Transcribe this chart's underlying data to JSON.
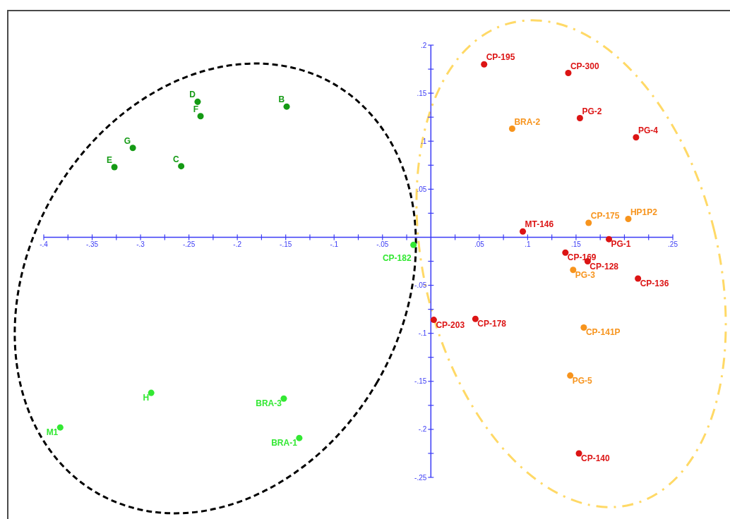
{
  "chart_data": {
    "type": "scatter",
    "marker": "circle",
    "series": [
      {
        "color": "#149a14",
        "x": [
          -0.241,
          -0.238,
          -0.149,
          -0.308,
          -0.327,
          -0.258
        ],
        "values": [
          0.141,
          0.126,
          0.136,
          0.093,
          0.073,
          0.074
        ]
      },
      {
        "color": "#33e833",
        "x": [
          -0.289,
          -0.152,
          -0.383,
          -0.136,
          -0.018
        ],
        "values": [
          -0.162,
          -0.168,
          -0.198,
          -0.209,
          -0.008
        ]
      },
      {
        "color": "#dc1414",
        "x": [
          0.055,
          0.142,
          0.154,
          0.212,
          0.095,
          0.184,
          0.139,
          0.162,
          0.214,
          0.003,
          0.046,
          0.153
        ],
        "values": [
          0.18,
          0.171,
          0.124,
          0.104,
          0.006,
          -0.002,
          -0.016,
          -0.025,
          -0.043,
          -0.086,
          -0.085,
          -0.225
        ]
      },
      {
        "color": "#f7941d",
        "x": [
          0.084,
          0.163,
          0.204,
          0.147,
          0.158,
          0.144
        ],
        "values": [
          0.113,
          0.015,
          0.019,
          -0.034,
          -0.094,
          -0.144
        ]
      }
    ],
    "xlim": [
      -0.4,
      0.25
    ],
    "ylim": [
      -0.25,
      0.2
    ],
    "xticks": [
      {
        "value": -0.4,
        "label": "-.4"
      },
      {
        "value": -0.375,
        "label": null
      },
      {
        "value": -0.35,
        "label": "-.35"
      },
      {
        "value": -0.325,
        "label": null
      },
      {
        "value": -0.3,
        "label": "-.3"
      },
      {
        "value": -0.275,
        "label": null
      },
      {
        "value": -0.25,
        "label": "-.25"
      },
      {
        "value": -0.225,
        "label": null
      },
      {
        "value": -0.2,
        "label": "-.2"
      },
      {
        "value": -0.175,
        "label": null
      },
      {
        "value": -0.15,
        "label": "-.15"
      },
      {
        "value": -0.125,
        "label": null
      },
      {
        "value": -0.1,
        "label": "-.1"
      },
      {
        "value": -0.075,
        "label": null
      },
      {
        "value": -0.05,
        "label": "-.05"
      },
      {
        "value": -0.025,
        "label": null
      },
      {
        "value": 0.025,
        "label": null
      },
      {
        "value": 0.05,
        "label": ".05"
      },
      {
        "value": 0.075,
        "label": null
      },
      {
        "value": 0.1,
        "label": ".1"
      },
      {
        "value": 0.125,
        "label": null
      },
      {
        "value": 0.15,
        "label": ".15"
      },
      {
        "value": 0.175,
        "label": null
      },
      {
        "value": 0.2,
        "label": null
      },
      {
        "value": 0.225,
        "label": null
      },
      {
        "value": 0.25,
        "label": ".25"
      }
    ],
    "yticks": [
      {
        "value": 0.2,
        "label": ".2"
      },
      {
        "value": 0.175,
        "label": null
      },
      {
        "value": 0.15,
        "label": ".15"
      },
      {
        "value": 0.125,
        "label": null
      },
      {
        "value": 0.1,
        "label": ".1"
      },
      {
        "value": 0.075,
        "label": null
      },
      {
        "value": 0.05,
        "label": ".05"
      },
      {
        "value": 0.025,
        "label": null
      },
      {
        "value": -0.025,
        "label": null
      },
      {
        "value": -0.05,
        "label": "-.05"
      },
      {
        "value": -0.075,
        "label": null
      },
      {
        "value": -0.1,
        "label": "-.1"
      },
      {
        "value": -0.125,
        "label": null
      },
      {
        "value": -0.15,
        "label": "-.15"
      },
      {
        "value": -0.175,
        "label": null
      },
      {
        "value": -0.2,
        "label": "-.2"
      },
      {
        "value": -0.225,
        "label": null
      },
      {
        "value": -0.25,
        "label": "-.25"
      }
    ],
    "annotations": [
      {
        "text": "D",
        "x": -0.241,
        "y": 0.141
      },
      {
        "text": "F",
        "x": -0.238,
        "y": 0.126
      },
      {
        "text": "B",
        "x": -0.149,
        "y": 0.136
      },
      {
        "text": "G",
        "x": -0.308,
        "y": 0.093
      },
      {
        "text": "E",
        "x": -0.327,
        "y": 0.073
      },
      {
        "text": "C",
        "x": -0.258,
        "y": 0.074
      },
      {
        "text": "H",
        "x": -0.289,
        "y": -0.162
      },
      {
        "text": "BRA-3",
        "x": -0.152,
        "y": -0.168
      },
      {
        "text": "M1",
        "x": -0.383,
        "y": -0.198
      },
      {
        "text": "BRA-1",
        "x": -0.136,
        "y": -0.209
      },
      {
        "text": "CP-182",
        "x": -0.018,
        "y": -0.008
      },
      {
        "text": "CP-195",
        "x": 0.055,
        "y": 0.18
      },
      {
        "text": "CP-300",
        "x": 0.142,
        "y": 0.171
      },
      {
        "text": "PG-2",
        "x": 0.154,
        "y": 0.124
      },
      {
        "text": "PG-4",
        "x": 0.212,
        "y": 0.104
      },
      {
        "text": "MT-146",
        "x": 0.095,
        "y": 0.006
      },
      {
        "text": "PG-1",
        "x": 0.184,
        "y": -0.002
      },
      {
        "text": "CP-169",
        "x": 0.139,
        "y": -0.016
      },
      {
        "text": "CP-128",
        "x": 0.162,
        "y": -0.025
      },
      {
        "text": "CP-136",
        "x": 0.214,
        "y": -0.043
      },
      {
        "text": "CP-203",
        "x": 0.003,
        "y": -0.086
      },
      {
        "text": "CP-178",
        "x": 0.046,
        "y": -0.085
      },
      {
        "text": "CP-140",
        "x": 0.153,
        "y": -0.225
      },
      {
        "text": "BRA-2",
        "x": 0.084,
        "y": 0.113
      },
      {
        "text": "CP-175",
        "x": 0.163,
        "y": 0.015
      },
      {
        "text": "HP1P2",
        "x": 0.204,
        "y": 0.019
      },
      {
        "text": "PG-3",
        "x": 0.147,
        "y": -0.034
      },
      {
        "text": "CP-141P",
        "x": 0.158,
        "y": -0.094
      },
      {
        "text": "PG-5",
        "x": 0.144,
        "y": -0.144
      }
    ]
  }
}
